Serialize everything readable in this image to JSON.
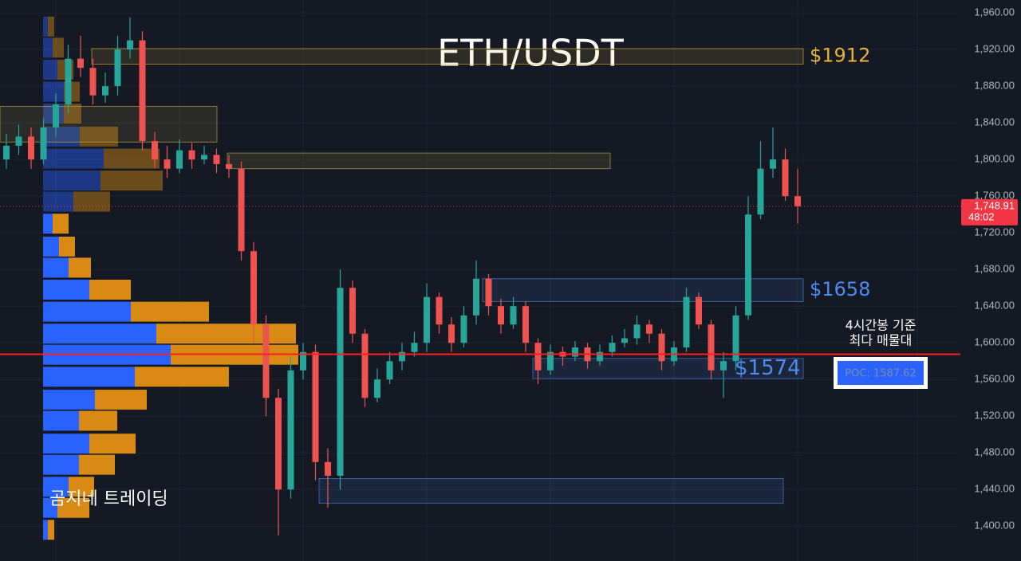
{
  "chart_data": {
    "type": "candlestick",
    "title": "ETH/USDT",
    "ylim": [
      1362,
      1974
    ],
    "yticks": [
      {
        "value": 1400,
        "label": "1,400.00"
      },
      {
        "value": 1440,
        "label": "1,440.00"
      },
      {
        "value": 1480,
        "label": "1,480.00"
      },
      {
        "value": 1520,
        "label": "1,520.00"
      },
      {
        "value": 1560,
        "label": "1,560.00"
      },
      {
        "value": 1600,
        "label": "1,600.00"
      },
      {
        "value": 1640,
        "label": "1,640.00"
      },
      {
        "value": 1680,
        "label": "1,680.00"
      },
      {
        "value": 1720,
        "label": "1,720.00"
      },
      {
        "value": 1760,
        "label": "1,760.00"
      },
      {
        "value": 1800,
        "label": "1,800.00"
      },
      {
        "value": 1840,
        "label": "1,840.00"
      },
      {
        "value": 1880,
        "label": "1,880.00"
      },
      {
        "value": 1920,
        "label": "1,920.00"
      },
      {
        "value": 1960,
        "label": "1,960.00"
      }
    ],
    "grid": true,
    "up_color": "#26a69a",
    "down_color": "#ef5350",
    "candles": {
      "open": [
        1800,
        1815,
        1825,
        1800,
        1835,
        1860,
        1910,
        1900,
        1870,
        1880,
        1920,
        1930,
        1820,
        1800,
        1790,
        1810,
        1800,
        1805,
        1795,
        1790,
        1700,
        1620,
        1540,
        1440,
        1570,
        1590,
        1470,
        1455,
        1660,
        1610,
        1540,
        1560,
        1580,
        1590,
        1600,
        1650,
        1620,
        1600,
        1630,
        1670,
        1640,
        1620,
        1640,
        1600,
        1570,
        1590,
        1585,
        1595,
        1580,
        1590,
        1600,
        1605,
        1620,
        1610,
        1580,
        1595,
        1650,
        1620,
        1570,
        1580,
        1630,
        1740,
        1790,
        1800,
        1760
      ],
      "high": [
        1828,
        1838,
        1835,
        1845,
        1872,
        1925,
        1935,
        1910,
        1895,
        1935,
        1955,
        1940,
        1830,
        1815,
        1822,
        1818,
        1815,
        1812,
        1805,
        1798,
        1710,
        1630,
        1550,
        1585,
        1600,
        1598,
        1485,
        1680,
        1668,
        1615,
        1572,
        1590,
        1600,
        1612,
        1665,
        1655,
        1628,
        1640,
        1690,
        1675,
        1648,
        1650,
        1645,
        1605,
        1598,
        1596,
        1602,
        1600,
        1598,
        1608,
        1615,
        1630,
        1625,
        1615,
        1602,
        1660,
        1655,
        1625,
        1590,
        1640,
        1760,
        1820,
        1835,
        1812,
        1790
      ],
      "low": [
        1790,
        1805,
        1790,
        1795,
        1825,
        1850,
        1890,
        1860,
        1862,
        1870,
        1910,
        1810,
        1790,
        1780,
        1785,
        1790,
        1795,
        1785,
        1780,
        1690,
        1600,
        1520,
        1390,
        1430,
        1560,
        1450,
        1420,
        1440,
        1600,
        1530,
        1535,
        1555,
        1570,
        1585,
        1590,
        1610,
        1590,
        1595,
        1620,
        1630,
        1610,
        1615,
        1590,
        1555,
        1565,
        1575,
        1580,
        1572,
        1575,
        1585,
        1595,
        1598,
        1600,
        1570,
        1575,
        1590,
        1615,
        1560,
        1540,
        1570,
        1625,
        1735,
        1780,
        1755,
        1730
      ],
      "close": [
        1815,
        1825,
        1800,
        1835,
        1860,
        1910,
        1900,
        1870,
        1880,
        1920,
        1930,
        1820,
        1800,
        1790,
        1810,
        1800,
        1805,
        1795,
        1790,
        1700,
        1620,
        1540,
        1440,
        1570,
        1590,
        1470,
        1455,
        1660,
        1610,
        1540,
        1560,
        1580,
        1590,
        1600,
        1650,
        1620,
        1600,
        1630,
        1670,
        1640,
        1620,
        1640,
        1600,
        1570,
        1590,
        1585,
        1595,
        1580,
        1590,
        1600,
        1605,
        1620,
        1610,
        1580,
        1595,
        1650,
        1620,
        1570,
        1580,
        1630,
        1740,
        1790,
        1800,
        1760,
        1749
      ]
    },
    "current_price": {
      "value": 1748.91,
      "label": "1,748.91",
      "countdown": "48:02",
      "color": "#f23645"
    },
    "poc": {
      "value": 1587.62,
      "label": "POC: 1587.62",
      "color": "#ff1e1e"
    },
    "zones": [
      {
        "low": 1904,
        "high": 1921,
        "label": "$1912",
        "color": "#e5b53a"
      },
      {
        "low": 1819,
        "high": 1858,
        "color": "#c9b24a"
      },
      {
        "low": 1790,
        "high": 1807,
        "color": "#c9b24a"
      },
      {
        "low": 1645,
        "high": 1670,
        "label": "$1658",
        "color": "#4a8cf0"
      },
      {
        "low": 1561,
        "high": 1583,
        "label": "$1574",
        "color": "#4a8cf0"
      },
      {
        "low": 1425,
        "high": 1452,
        "color": "#4a8cf0"
      }
    ],
    "profile": {
      "levels": [
        1945,
        1922,
        1898,
        1874,
        1850,
        1825,
        1801,
        1777,
        1754,
        1730,
        1705,
        1682,
        1658,
        1634,
        1610,
        1587,
        1563,
        1538,
        1515,
        1490,
        1467,
        1443,
        1420,
        1396
      ],
      "buy": [
        6,
        12,
        18,
        26,
        26,
        46,
        76,
        72,
        38,
        12,
        20,
        32,
        58,
        110,
        142,
        160,
        115,
        65,
        45,
        58,
        45,
        32,
        18,
        6
      ],
      "sell": [
        8,
        14,
        20,
        20,
        22,
        48,
        70,
        78,
        46,
        20,
        20,
        28,
        52,
        98,
        175,
        160,
        118,
        65,
        48,
        58,
        45,
        32,
        40,
        8
      ],
      "buy_color": "#2962ff",
      "sell_color": "#d88a14"
    },
    "annotations": {
      "note": [
        "4시간봉 기준",
        "최다 매물대"
      ],
      "watermark": "곰지네 트레이딩"
    }
  }
}
